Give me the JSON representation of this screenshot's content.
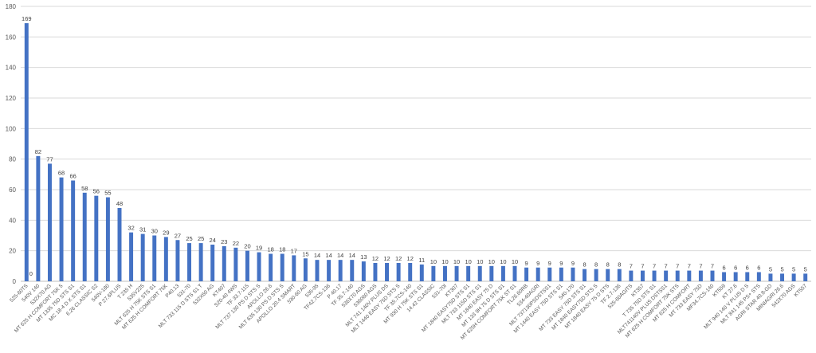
{
  "chart_data": {
    "type": "bar",
    "title": "",
    "xlabel": "",
    "ylabel": "",
    "ylim": [
      0,
      180
    ],
    "yticks": [
      0,
      20,
      40,
      60,
      80,
      100,
      120,
      140,
      160,
      180
    ],
    "grid": true,
    "bar_color": "#4472c4",
    "categories": [
      "525-60TS",
      "540V 140",
      "532X70 AG",
      "MT 625 H COMFORT 75K 5",
      "MT 1335 75D STS S1",
      "MC 18-4 D X STS S1",
      "6.26 CLASSIC S2",
      "540V-180",
      "P 27.6PLUS",
      "T 235 H",
      "535V225",
      "MLT 625 H 75K STS S1",
      "MT 625 H COMFORT 75K",
      "P40.13",
      "531-70",
      "MLT 733 115 D STS S1 T",
      "532X60 AG",
      "KT407",
      "S20-40 4WS",
      "TF 33.7-115",
      "MLT 737 130 PS D STS S",
      "APOLLO 26.6",
      "MLT 635 130 PS D STS S",
      "APOLLO 20.4 SMART",
      "530-60 AG",
      "535-95",
      "TF42.7CS-136",
      "P 40.17",
      "TF 35.7-140",
      "536X70 AGS",
      "536060 AGS",
      "MLT 741 140V PLUS DS",
      "MLT 1440 EASY 75D STS S",
      "TF 35.7CS-140",
      "MT 930 H 75K STS S1",
      "14.42 CLASSIC",
      "531-70I",
      "KT307",
      "MT 1840 EASY75D STS S1",
      "MLT 733 115D STS S1",
      "MT 1840 EASY 75 D",
      "MT 133 9H 75 D STS S1",
      "MT 625H COMFORT 75K ST S1",
      "TL26.60RB",
      "534-40AGRI",
      "MLT 737130PSDSTSS1",
      "MT 1440 EASY 75D STS S1",
      "540-170",
      "MT 733 EASY 75D STS S1",
      "MT 1840 EASY75D STS S",
      "MT 1840 EASY 75 D STS",
      "TF 2.7-136",
      "525-60AGITS",
      "KT357",
      "T 735 75D STS S1",
      "MLT741140V PLUS DSTSS1",
      "MT 625 H COMFORT 75K STS",
      "MT 625 H COMFORT",
      "MT 733 EASY 75D",
      "MF34.7CS-140",
      "KT559",
      "KT 27.6",
      "MLT 940 140 V PLUS D S",
      "MLT 841 145 PS+ STS",
      "AGRI STAR 40.8-GD",
      "MINIAGRI 26.6",
      "542X70 AGS",
      "KT557"
    ],
    "values": [
      169,
      82,
      77,
      68,
      66,
      58,
      56,
      55,
      48,
      32,
      31,
      30,
      29,
      27,
      25,
      25,
      24,
      23,
      22,
      20,
      19,
      18,
      18,
      17,
      15,
      14,
      14,
      14,
      14,
      13,
      12,
      12,
      12,
      12,
      11,
      10,
      10,
      10,
      10,
      10,
      10,
      10,
      10,
      9,
      9,
      9,
      9,
      9,
      8,
      8,
      8,
      8,
      7,
      7,
      7,
      7,
      7,
      7,
      7,
      7,
      6,
      6,
      6,
      6,
      5,
      5,
      5,
      5
    ],
    "annotations": [
      {
        "label": "0",
        "category_index": 0
      }
    ]
  }
}
